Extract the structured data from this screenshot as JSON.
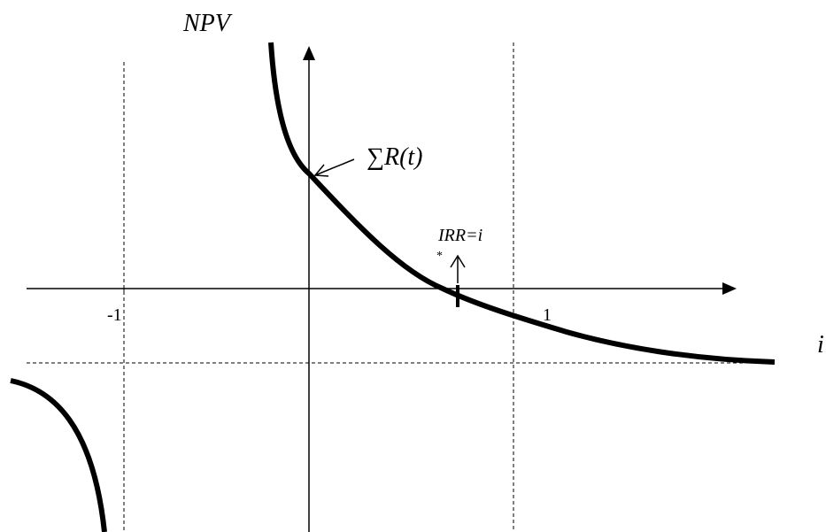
{
  "labels": {
    "y_axis": "NPV",
    "x_axis": "i",
    "intercept": "∑R(t)",
    "irr": "IRR=i",
    "irr_star": "*",
    "tick_neg_one": "-1",
    "tick_one": "1"
  },
  "colors": {
    "ink": "#000000",
    "background": "#ffffff"
  }
}
